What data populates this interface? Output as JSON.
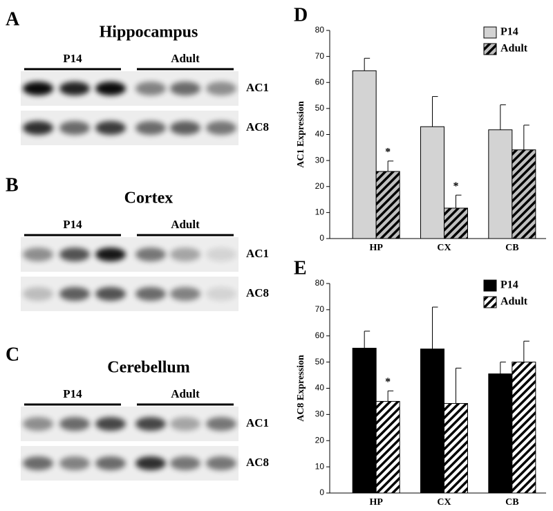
{
  "blots": [
    {
      "label": "A",
      "title": "Hippocampus",
      "groups": [
        "P14",
        "Adult"
      ],
      "rows": [
        "AC1",
        "AC8"
      ]
    },
    {
      "label": "B",
      "title": "Cortex",
      "groups": [
        "P14",
        "Adult"
      ],
      "rows": [
        "AC1",
        "AC8"
      ]
    },
    {
      "label": "C",
      "title": "Cerebellum",
      "groups": [
        "P14",
        "Adult"
      ],
      "rows": [
        "AC1",
        "AC8"
      ]
    }
  ],
  "chart_data": [
    {
      "type": "bar",
      "panel_label": "D",
      "y_label": "AC1 Expression",
      "categories": [
        "HP",
        "CX",
        "CB"
      ],
      "series": [
        {
          "name": "P14",
          "color": "#d3d3d3",
          "hatch": false,
          "values": [
            64.5,
            43,
            41.8
          ],
          "errors": [
            4.8,
            11.6,
            9.6
          ]
        },
        {
          "name": "Adult",
          "color": "#c0c0c0",
          "hatch": true,
          "values": [
            25.8,
            11.7,
            34.1
          ],
          "errors": [
            4,
            5,
            9.5
          ]
        }
      ],
      "annotations": [
        {
          "text": "*",
          "series": 1,
          "index": 0
        },
        {
          "text": "*",
          "series": 1,
          "index": 1
        }
      ],
      "ylim": [
        0,
        80
      ],
      "yticks": [
        0,
        10,
        20,
        30,
        40,
        50,
        60,
        70,
        80
      ],
      "legend": "upper right"
    },
    {
      "type": "bar",
      "panel_label": "E",
      "y_label": "AC8 Expression",
      "categories": [
        "HP",
        "CX",
        "CB"
      ],
      "series": [
        {
          "name": "P14",
          "color": "#000000",
          "hatch": false,
          "values": [
            55.3,
            55,
            45.5
          ],
          "errors": [
            6.5,
            16,
            4.5
          ]
        },
        {
          "name": "Adult",
          "color": "#ffffff",
          "hatch": true,
          "values": [
            35,
            34.2,
            50
          ],
          "errors": [
            4,
            13.5,
            8
          ]
        }
      ],
      "annotations": [
        {
          "text": "*",
          "series": 1,
          "index": 0
        }
      ],
      "ylim": [
        0,
        80
      ],
      "yticks": [
        0,
        10,
        20,
        30,
        40,
        50,
        60,
        70,
        80
      ],
      "legend": "upper right"
    }
  ]
}
